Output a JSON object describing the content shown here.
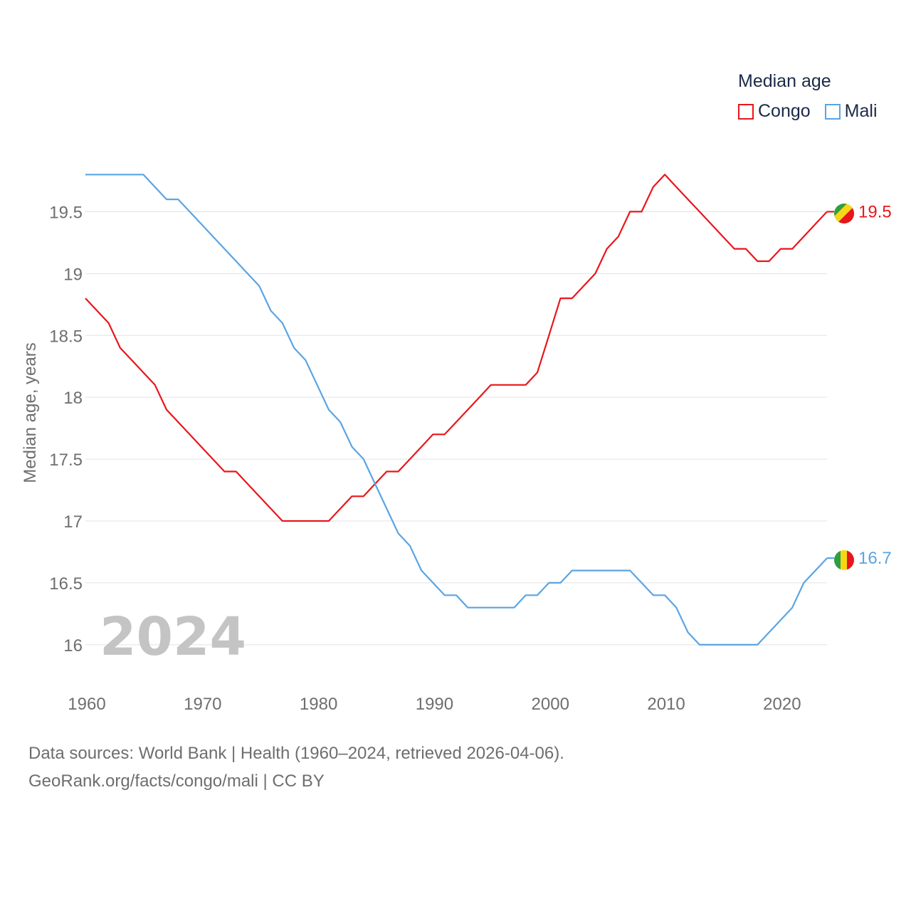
{
  "chart_data": {
    "type": "line",
    "title": "Median age",
    "ylabel": "Median age, years",
    "xlabel": "",
    "xlim": [
      1960,
      2024
    ],
    "ylim": [
      15.7,
      19.98
    ],
    "x_ticks": [
      1960,
      1970,
      1980,
      1990,
      2000,
      2010,
      2020
    ],
    "y_ticks": [
      16,
      16.5,
      17,
      17.5,
      18,
      18.5,
      19,
      19.5
    ],
    "year_label": "2024",
    "x": [
      1960,
      1961,
      1962,
      1963,
      1964,
      1965,
      1966,
      1967,
      1968,
      1969,
      1970,
      1971,
      1972,
      1973,
      1974,
      1975,
      1976,
      1977,
      1978,
      1979,
      1980,
      1981,
      1982,
      1983,
      1984,
      1985,
      1986,
      1987,
      1988,
      1989,
      1990,
      1991,
      1992,
      1993,
      1994,
      1995,
      1996,
      1997,
      1998,
      1999,
      2000,
      2001,
      2002,
      2003,
      2004,
      2005,
      2006,
      2007,
      2008,
      2009,
      2010,
      2011,
      2012,
      2013,
      2014,
      2015,
      2016,
      2017,
      2018,
      2019,
      2020,
      2021,
      2022,
      2023,
      2024
    ],
    "series": [
      {
        "name": "Congo",
        "color": "#e8161b",
        "end_label": "19.5",
        "values": [
          18.8,
          18.7,
          18.6,
          18.4,
          18.3,
          18.2,
          18.1,
          17.9,
          17.8,
          17.7,
          17.6,
          17.5,
          17.4,
          17.4,
          17.3,
          17.2,
          17.1,
          17.0,
          17.0,
          17.0,
          17.0,
          17.0,
          17.1,
          17.2,
          17.2,
          17.3,
          17.4,
          17.4,
          17.5,
          17.6,
          17.7,
          17.7,
          17.8,
          17.9,
          18.0,
          18.1,
          18.1,
          18.1,
          18.1,
          18.2,
          18.5,
          18.8,
          18.8,
          18.9,
          19.0,
          19.2,
          19.3,
          19.5,
          19.5,
          19.7,
          19.8,
          19.7,
          19.6,
          19.5,
          19.4,
          19.3,
          19.2,
          19.2,
          19.1,
          19.1,
          19.2,
          19.2,
          19.3,
          19.4,
          19.5
        ]
      },
      {
        "name": "Mali",
        "color": "#5ba4e3",
        "end_label": "16.7",
        "values": [
          19.8,
          19.8,
          19.8,
          19.8,
          19.8,
          19.8,
          19.7,
          19.6,
          19.6,
          19.5,
          19.4,
          19.3,
          19.2,
          19.1,
          19.0,
          18.9,
          18.7,
          18.6,
          18.4,
          18.3,
          18.1,
          17.9,
          17.8,
          17.6,
          17.5,
          17.3,
          17.1,
          16.9,
          16.8,
          16.6,
          16.5,
          16.4,
          16.4,
          16.3,
          16.3,
          16.3,
          16.3,
          16.3,
          16.4,
          16.4,
          16.5,
          16.5,
          16.6,
          16.6,
          16.6,
          16.6,
          16.6,
          16.6,
          16.5,
          16.4,
          16.4,
          16.3,
          16.1,
          16.0,
          16.0,
          16.0,
          16.0,
          16.0,
          16.0,
          16.1,
          16.2,
          16.3,
          16.5,
          16.6,
          16.7
        ]
      }
    ]
  },
  "legend": {
    "title": "Median age",
    "items": [
      {
        "label": "Congo",
        "color": "#e8161b"
      },
      {
        "label": "Mali",
        "color": "#5ba4e3"
      }
    ]
  },
  "flags": {
    "congo": {
      "green": "#2e9e42",
      "yellow": "#f7d618",
      "red": "#e8161b"
    },
    "mali": {
      "green": "#2e9e42",
      "yellow": "#f7d618",
      "red": "#e8161b"
    }
  },
  "footer": {
    "line1": "Data sources: World Bank | Health (1960–2024, retrieved 2026-04-06).",
    "line2": "GeoRank.org/facts/congo/mali | CC BY"
  }
}
